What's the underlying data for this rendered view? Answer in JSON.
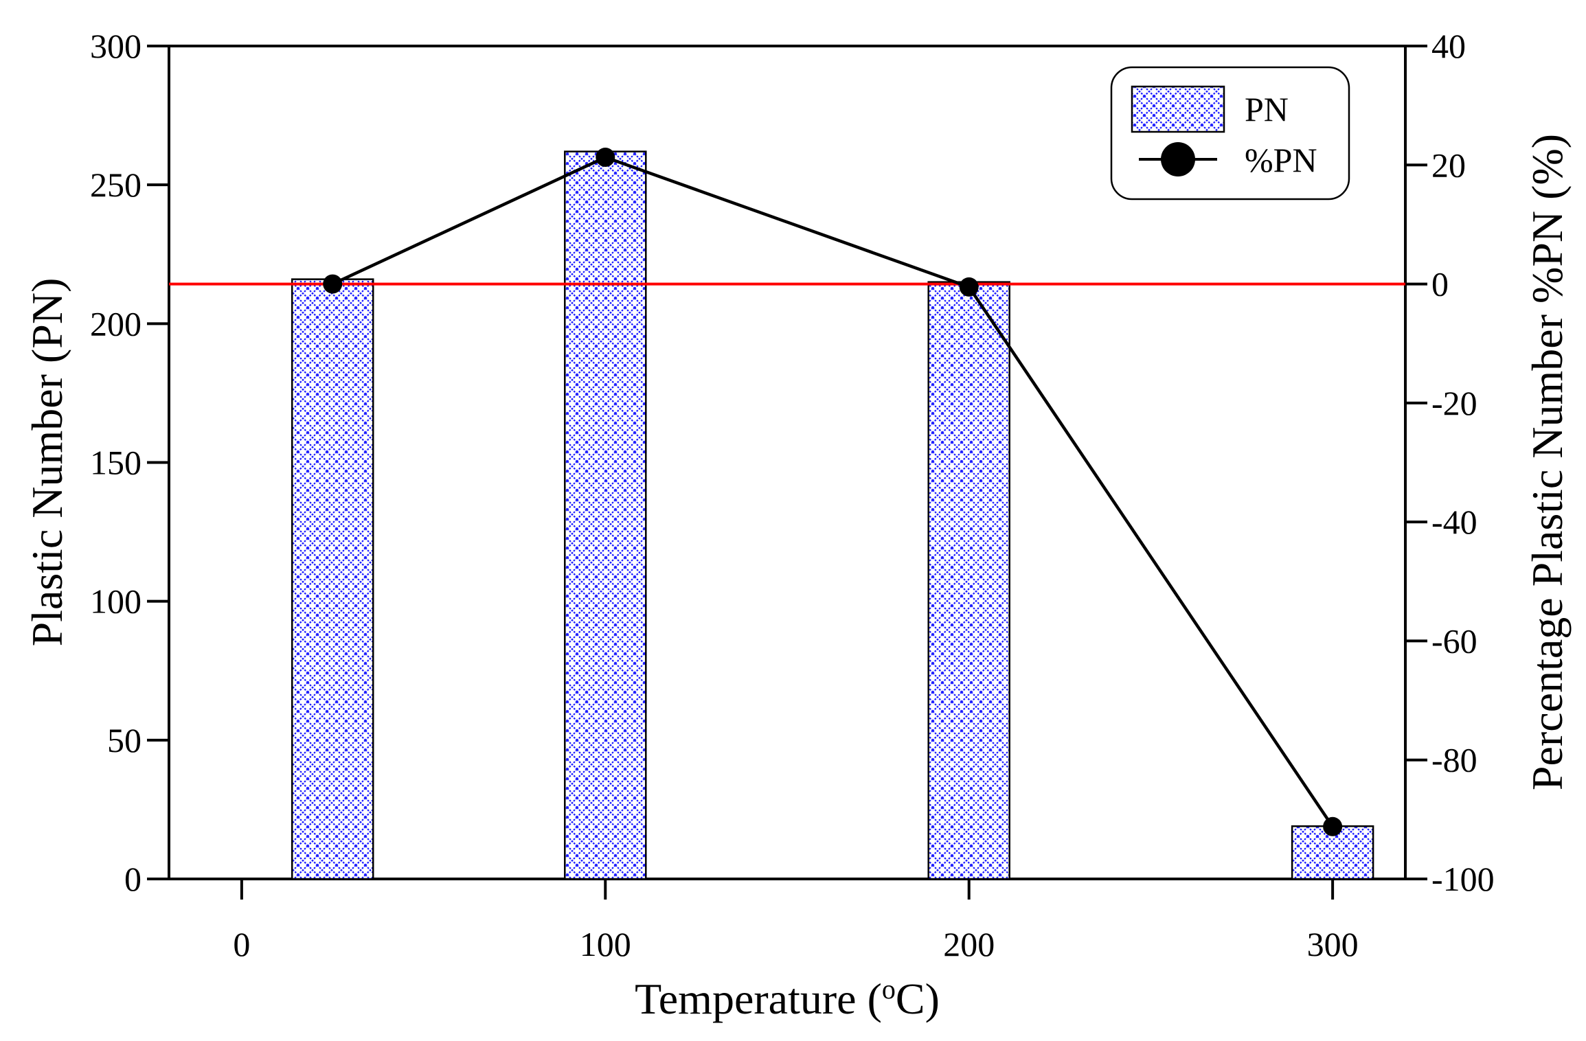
{
  "chart_data": {
    "type": "bar",
    "xlabel": "Temperature (",
    "xlabel_sup": "o",
    "xlabel_tail": "C)",
    "ylabel_left": "Plastic Number (PN)",
    "ylabel_right": "Percentage  Plastic Number %PN (%)",
    "x_range": [
      -20,
      320
    ],
    "x_ticks": [
      0,
      100,
      200,
      300
    ],
    "y_left_range": [
      0,
      300
    ],
    "y_left_ticks": [
      0,
      50,
      100,
      150,
      200,
      250,
      300
    ],
    "y_right_range": [
      -100,
      40
    ],
    "y_right_ticks": [
      -100,
      -80,
      -60,
      -40,
      -20,
      0,
      20,
      40
    ],
    "grid": false,
    "legend_position": "top-right",
    "series": [
      {
        "name": "PN",
        "kind": "bar",
        "axis": "left",
        "x": [
          25,
          100,
          200,
          300
        ],
        "values": [
          216,
          262,
          215,
          19
        ],
        "color": "#0000ff",
        "pattern": "crosshatch"
      },
      {
        "name": "%PN",
        "kind": "line",
        "axis": "right",
        "x": [
          25,
          100,
          200,
          300
        ],
        "values": [
          0,
          21.3,
          -0.5,
          -91.2
        ],
        "color": "#000000",
        "marker": "circle"
      }
    ],
    "reference_line": {
      "y": 0,
      "axis": "right",
      "color": "#ff0000"
    }
  }
}
